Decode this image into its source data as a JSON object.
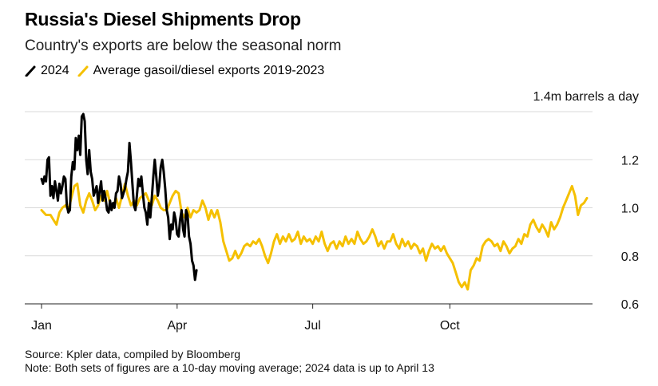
{
  "title": "Russia's Diesel Shipments Drop",
  "subtitle": "Country's exports are below the seasonal norm",
  "legend": [
    {
      "name": "2024",
      "color": "#000000"
    },
    {
      "name": "Average gasoil/diesel exports 2019-2023",
      "color": "#f5c000"
    }
  ],
  "footer": {
    "source": "Source: Kpler data, compiled by Bloomberg",
    "note": "Note: Both sets of figures are a 10-day moving average; 2024 data is up to April 13"
  },
  "chart_data": {
    "type": "line",
    "ylabel": "1.4m barrels a day",
    "ylim": [
      0.6,
      1.4
    ],
    "yticks": [
      0.6,
      0.8,
      1.0,
      1.2
    ],
    "yticks_labels": [
      "0.6",
      "0.8",
      "1.0",
      "1.2"
    ],
    "x_domain": [
      0,
      366
    ],
    "xticks": [
      {
        "day": 0,
        "label": "Jan"
      },
      {
        "day": 91,
        "label": "Apr"
      },
      {
        "day": 182,
        "label": "Jul"
      },
      {
        "day": 274,
        "label": "Oct"
      }
    ],
    "series": [
      {
        "name": "2024",
        "color": "#000000",
        "points": [
          [
            0,
            1.12
          ],
          [
            1,
            1.1
          ],
          [
            2,
            1.13
          ],
          [
            3,
            1.11
          ],
          [
            4,
            1.2
          ],
          [
            5,
            1.21
          ],
          [
            6,
            1.05
          ],
          [
            7,
            1.09
          ],
          [
            8,
            1.04
          ],
          [
            9,
            1.11
          ],
          [
            10,
            1.07
          ],
          [
            11,
            1.03
          ],
          [
            12,
            1.1
          ],
          [
            13,
            1.06
          ],
          [
            14,
            1.09
          ],
          [
            15,
            1.13
          ],
          [
            16,
            1.12
          ],
          [
            17,
            1.01
          ],
          [
            18,
            0.98
          ],
          [
            19,
            0.99
          ],
          [
            20,
            1.13
          ],
          [
            21,
            1.19
          ],
          [
            22,
            1.16
          ],
          [
            23,
            1.29
          ],
          [
            24,
            1.24
          ],
          [
            25,
            1.3
          ],
          [
            26,
            1.22
          ],
          [
            27,
            1.38
          ],
          [
            28,
            1.39
          ],
          [
            29,
            1.36
          ],
          [
            30,
            1.2
          ],
          [
            31,
            1.14
          ],
          [
            32,
            1.24
          ],
          [
            33,
            1.15
          ],
          [
            34,
            1.12
          ],
          [
            35,
            1.05
          ],
          [
            36,
            1.07
          ],
          [
            37,
            1.09
          ],
          [
            38,
            1.02
          ],
          [
            39,
            1.07
          ],
          [
            40,
            1.11
          ],
          [
            41,
            1.03
          ],
          [
            42,
            1.07
          ],
          [
            43,
            1.04
          ],
          [
            44,
            0.99
          ],
          [
            45,
            0.98
          ],
          [
            46,
            1.03
          ],
          [
            47,
            0.99
          ],
          [
            48,
            1.02
          ],
          [
            49,
            1.0
          ],
          [
            50,
            1.06
          ],
          [
            51,
            1.07
          ],
          [
            52,
            1.13
          ],
          [
            53,
            1.1
          ],
          [
            54,
            1.04
          ],
          [
            55,
            1.06
          ],
          [
            56,
            1.08
          ],
          [
            57,
            1.12
          ],
          [
            58,
            1.15
          ],
          [
            59,
            1.27
          ],
          [
            60,
            1.19
          ],
          [
            61,
            1.1
          ],
          [
            62,
            1.01
          ],
          [
            63,
            0.99
          ],
          [
            64,
            1.05
          ],
          [
            65,
            1.12
          ],
          [
            66,
            1.09
          ],
          [
            67,
            1.13
          ],
          [
            68,
            1.06
          ],
          [
            69,
            1.0
          ],
          [
            70,
            0.98
          ],
          [
            71,
            0.93
          ],
          [
            72,
            1.02
          ],
          [
            73,
            0.96
          ],
          [
            74,
            1.04
          ],
          [
            75,
            1.13
          ],
          [
            76,
            1.2
          ],
          [
            77,
            1.13
          ],
          [
            78,
            1.05
          ],
          [
            79,
            1.09
          ],
          [
            80,
            1.17
          ],
          [
            81,
            1.2
          ],
          [
            82,
            1.15
          ],
          [
            83,
            1.08
          ],
          [
            84,
            0.99
          ],
          [
            85,
            0.96
          ],
          [
            86,
            0.87
          ],
          [
            87,
            0.93
          ],
          [
            88,
            0.91
          ],
          [
            89,
            0.98
          ],
          [
            90,
            0.95
          ],
          [
            91,
            0.89
          ],
          [
            92,
            0.88
          ],
          [
            93,
            0.95
          ],
          [
            94,
            0.99
          ],
          [
            95,
            0.91
          ],
          [
            96,
            0.88
          ],
          [
            97,
            0.99
          ],
          [
            98,
            0.97
          ],
          [
            99,
            0.88
          ],
          [
            100,
            0.85
          ],
          [
            101,
            0.78
          ],
          [
            102,
            0.76
          ],
          [
            103,
            0.7
          ],
          [
            104,
            0.74
          ]
        ]
      },
      {
        "name": "Average gasoil/diesel exports 2019-2023",
        "color": "#f5c000",
        "points": [
          [
            0,
            0.99
          ],
          [
            3,
            0.97
          ],
          [
            6,
            0.97
          ],
          [
            8,
            0.95
          ],
          [
            10,
            0.93
          ],
          [
            12,
            0.98
          ],
          [
            14,
            1.0
          ],
          [
            16,
            1.01
          ],
          [
            18,
            0.99
          ],
          [
            20,
            1.04
          ],
          [
            22,
            1.09
          ],
          [
            24,
            1.1
          ],
          [
            26,
            1.01
          ],
          [
            28,
            0.98
          ],
          [
            30,
            1.03
          ],
          [
            32,
            1.06
          ],
          [
            34,
            1.03
          ],
          [
            36,
            0.99
          ],
          [
            38,
            1.01
          ],
          [
            40,
            1.05
          ],
          [
            42,
            1.03
          ],
          [
            44,
            1.07
          ],
          [
            46,
            1.02
          ],
          [
            48,
            1.0
          ],
          [
            50,
            1.04
          ],
          [
            52,
            1.0
          ],
          [
            54,
            1.05
          ],
          [
            56,
            1.1
          ],
          [
            58,
            1.05
          ],
          [
            60,
            1.01
          ],
          [
            62,
            1.03
          ],
          [
            64,
            1.01
          ],
          [
            66,
            1.04
          ],
          [
            68,
            1.05
          ],
          [
            70,
            1.06
          ],
          [
            72,
            1.03
          ],
          [
            74,
            1.01
          ],
          [
            76,
            1.05
          ],
          [
            78,
            1.03
          ],
          [
            80,
            1.0
          ],
          [
            82,
            0.99
          ],
          [
            84,
            0.99
          ],
          [
            86,
            1.02
          ],
          [
            88,
            1.05
          ],
          [
            90,
            1.07
          ],
          [
            92,
            1.06
          ],
          [
            94,
            0.98
          ],
          [
            96,
            0.96
          ],
          [
            98,
            1.0
          ],
          [
            100,
            0.96
          ],
          [
            102,
            0.99
          ],
          [
            104,
            0.98
          ],
          [
            106,
            0.99
          ],
          [
            108,
            1.03
          ],
          [
            110,
            1.0
          ],
          [
            112,
            0.95
          ],
          [
            114,
            0.99
          ],
          [
            116,
            0.96
          ],
          [
            118,
            0.99
          ],
          [
            120,
            0.94
          ],
          [
            122,
            0.86
          ],
          [
            124,
            0.82
          ],
          [
            126,
            0.78
          ],
          [
            128,
            0.79
          ],
          [
            130,
            0.82
          ],
          [
            132,
            0.79
          ],
          [
            134,
            0.81
          ],
          [
            136,
            0.84
          ],
          [
            138,
            0.85
          ],
          [
            140,
            0.84
          ],
          [
            142,
            0.86
          ],
          [
            144,
            0.85
          ],
          [
            146,
            0.87
          ],
          [
            148,
            0.84
          ],
          [
            150,
            0.8
          ],
          [
            152,
            0.77
          ],
          [
            154,
            0.81
          ],
          [
            156,
            0.86
          ],
          [
            158,
            0.89
          ],
          [
            160,
            0.85
          ],
          [
            162,
            0.88
          ],
          [
            164,
            0.86
          ],
          [
            166,
            0.89
          ],
          [
            168,
            0.86
          ],
          [
            170,
            0.87
          ],
          [
            172,
            0.9
          ],
          [
            174,
            0.85
          ],
          [
            176,
            0.88
          ],
          [
            178,
            0.86
          ],
          [
            180,
            0.87
          ],
          [
            182,
            0.85
          ],
          [
            184,
            0.88
          ],
          [
            186,
            0.86
          ],
          [
            188,
            0.9
          ],
          [
            190,
            0.85
          ],
          [
            192,
            0.82
          ],
          [
            194,
            0.85
          ],
          [
            196,
            0.86
          ],
          [
            198,
            0.83
          ],
          [
            200,
            0.86
          ],
          [
            202,
            0.84
          ],
          [
            204,
            0.88
          ],
          [
            206,
            0.85
          ],
          [
            208,
            0.87
          ],
          [
            210,
            0.85
          ],
          [
            212,
            0.9
          ],
          [
            214,
            0.87
          ],
          [
            216,
            0.85
          ],
          [
            218,
            0.86
          ],
          [
            220,
            0.88
          ],
          [
            222,
            0.91
          ],
          [
            224,
            0.88
          ],
          [
            226,
            0.84
          ],
          [
            228,
            0.86
          ],
          [
            230,
            0.83
          ],
          [
            232,
            0.86
          ],
          [
            234,
            0.86
          ],
          [
            236,
            0.89
          ],
          [
            238,
            0.85
          ],
          [
            240,
            0.83
          ],
          [
            242,
            0.87
          ],
          [
            244,
            0.84
          ],
          [
            246,
            0.86
          ],
          [
            248,
            0.83
          ],
          [
            250,
            0.85
          ],
          [
            252,
            0.84
          ],
          [
            254,
            0.81
          ],
          [
            256,
            0.83
          ],
          [
            258,
            0.78
          ],
          [
            260,
            0.82
          ],
          [
            262,
            0.85
          ],
          [
            264,
            0.83
          ],
          [
            266,
            0.84
          ],
          [
            268,
            0.82
          ],
          [
            270,
            0.84
          ],
          [
            272,
            0.81
          ],
          [
            274,
            0.79
          ],
          [
            276,
            0.77
          ],
          [
            278,
            0.73
          ],
          [
            280,
            0.69
          ],
          [
            282,
            0.67
          ],
          [
            284,
            0.69
          ],
          [
            286,
            0.66
          ],
          [
            288,
            0.74
          ],
          [
            290,
            0.76
          ],
          [
            292,
            0.79
          ],
          [
            294,
            0.78
          ],
          [
            296,
            0.84
          ],
          [
            298,
            0.86
          ],
          [
            300,
            0.87
          ],
          [
            302,
            0.86
          ],
          [
            304,
            0.84
          ],
          [
            306,
            0.85
          ],
          [
            308,
            0.82
          ],
          [
            310,
            0.86
          ],
          [
            312,
            0.84
          ],
          [
            314,
            0.81
          ],
          [
            316,
            0.83
          ],
          [
            318,
            0.84
          ],
          [
            320,
            0.87
          ],
          [
            322,
            0.85
          ],
          [
            324,
            0.89
          ],
          [
            326,
            0.88
          ],
          [
            328,
            0.93
          ],
          [
            330,
            0.95
          ],
          [
            332,
            0.92
          ],
          [
            334,
            0.9
          ],
          [
            336,
            0.93
          ],
          [
            338,
            0.91
          ],
          [
            340,
            0.88
          ],
          [
            342,
            0.94
          ],
          [
            344,
            0.91
          ],
          [
            346,
            0.93
          ],
          [
            348,
            0.96
          ],
          [
            350,
            1.0
          ],
          [
            352,
            1.03
          ],
          [
            354,
            1.06
          ],
          [
            356,
            1.09
          ],
          [
            358,
            1.05
          ],
          [
            360,
            0.97
          ],
          [
            362,
            1.01
          ],
          [
            364,
            1.02
          ],
          [
            366,
            1.04
          ]
        ]
      }
    ]
  }
}
